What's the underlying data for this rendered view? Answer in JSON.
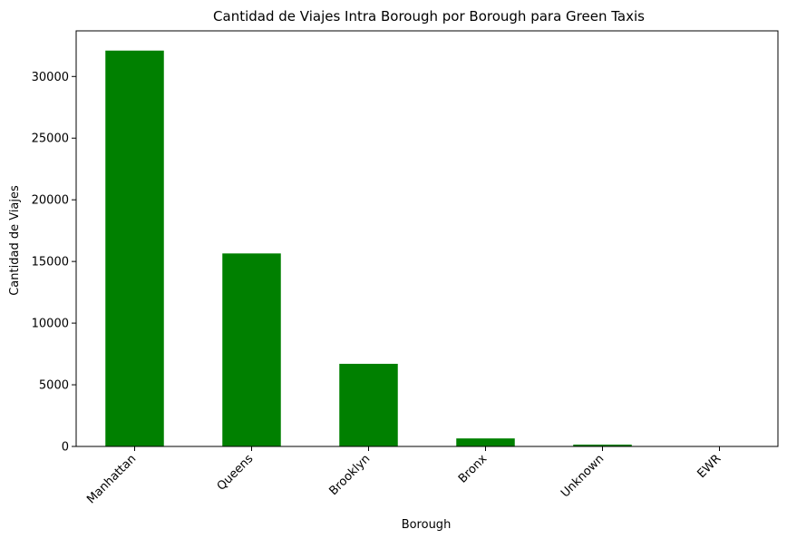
{
  "chart_data": {
    "type": "bar",
    "title": "Cantidad de Viajes Intra Borough por Borough para Green Taxis",
    "xlabel": "Borough",
    "ylabel": "Cantidad de Viajes",
    "categories": [
      "Manhattan",
      "Queens",
      "Brooklyn",
      "Bronx",
      "Unknown",
      "EWR"
    ],
    "values": [
      32100,
      15650,
      6700,
      650,
      150,
      10
    ],
    "ylim": [
      0,
      33700
    ],
    "yticks": [
      0,
      5000,
      10000,
      15000,
      20000,
      25000,
      30000
    ],
    "bar_color": "#008000",
    "grid": false,
    "legend": "none"
  }
}
